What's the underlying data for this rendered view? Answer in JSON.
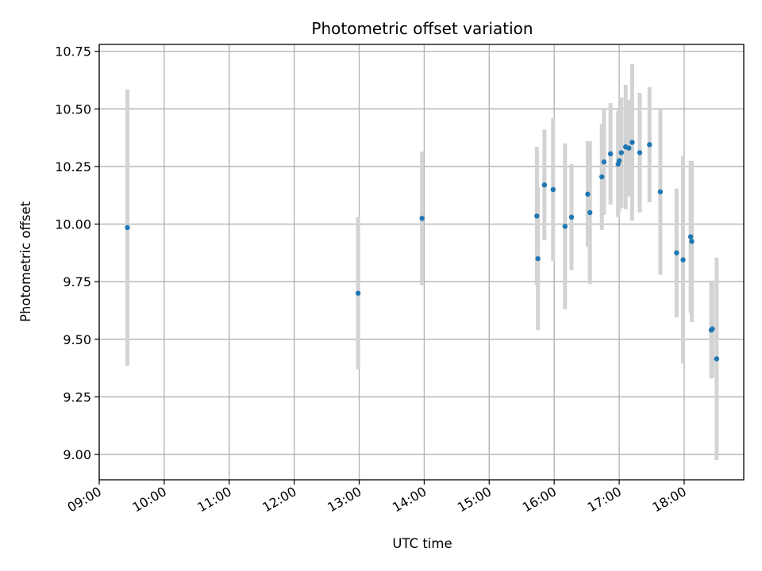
{
  "chart_data": {
    "type": "scatter",
    "title": "Photometric offset variation",
    "xlabel": "UTC time",
    "ylabel": "Photometric offset",
    "x_unit": "hours UTC",
    "xlim": [
      "09:00",
      "18:55"
    ],
    "ylim": [
      8.89,
      10.78
    ],
    "x_ticks": [
      "09:00",
      "10:00",
      "11:00",
      "12:00",
      "13:00",
      "14:00",
      "15:00",
      "16:00",
      "17:00",
      "18:00"
    ],
    "y_ticks": [
      "9.00",
      "9.25",
      "9.50",
      "9.75",
      "10.00",
      "10.25",
      "10.50",
      "10.75"
    ],
    "grid": true,
    "point_color": "#1f77b4",
    "error_bar_color": "#d3d3d3",
    "points": [
      {
        "x": "09:26",
        "y": 9.985,
        "err": 0.6
      },
      {
        "x": "12:59",
        "y": 9.7,
        "err": 0.33
      },
      {
        "x": "13:58",
        "y": 10.025,
        "err": 0.29
      },
      {
        "x": "15:44",
        "y": 10.035,
        "err": 0.3
      },
      {
        "x": "15:45",
        "y": 9.85,
        "err": 0.31
      },
      {
        "x": "15:51",
        "y": 10.17,
        "err": 0.24
      },
      {
        "x": "15:59",
        "y": 10.15,
        "err": 0.31
      },
      {
        "x": "16:10",
        "y": 9.99,
        "err": 0.36
      },
      {
        "x": "16:16",
        "y": 10.03,
        "err": 0.23
      },
      {
        "x": "16:31",
        "y": 10.13,
        "err": 0.23
      },
      {
        "x": "16:33",
        "y": 10.05,
        "err": 0.31
      },
      {
        "x": "16:44",
        "y": 10.205,
        "err": 0.23
      },
      {
        "x": "16:46",
        "y": 10.27,
        "err": 0.23
      },
      {
        "x": "16:52",
        "y": 10.305,
        "err": 0.22
      },
      {
        "x": "16:59",
        "y": 10.26,
        "err": 0.23
      },
      {
        "x": "17:00",
        "y": 10.275,
        "err": 0.22
      },
      {
        "x": "17:02",
        "y": 10.31,
        "err": 0.24
      },
      {
        "x": "17:06",
        "y": 10.335,
        "err": 0.27
      },
      {
        "x": "17:09",
        "y": 10.33,
        "err": 0.21
      },
      {
        "x": "17:12",
        "y": 10.355,
        "err": 0.34
      },
      {
        "x": "17:19",
        "y": 10.31,
        "err": 0.26
      },
      {
        "x": "17:28",
        "y": 10.345,
        "err": 0.25
      },
      {
        "x": "17:38",
        "y": 10.14,
        "err": 0.36
      },
      {
        "x": "17:53",
        "y": 9.875,
        "err": 0.28
      },
      {
        "x": "17:59",
        "y": 9.845,
        "err": 0.45
      },
      {
        "x": "18:06",
        "y": 9.945,
        "err": 0.33
      },
      {
        "x": "18:07",
        "y": 9.925,
        "err": 0.35
      },
      {
        "x": "18:25",
        "y": 9.54,
        "err": 0.21
      },
      {
        "x": "18:26",
        "y": 9.545,
        "err": 0.21
      },
      {
        "x": "18:30",
        "y": 9.415,
        "err": 0.44
      }
    ]
  }
}
